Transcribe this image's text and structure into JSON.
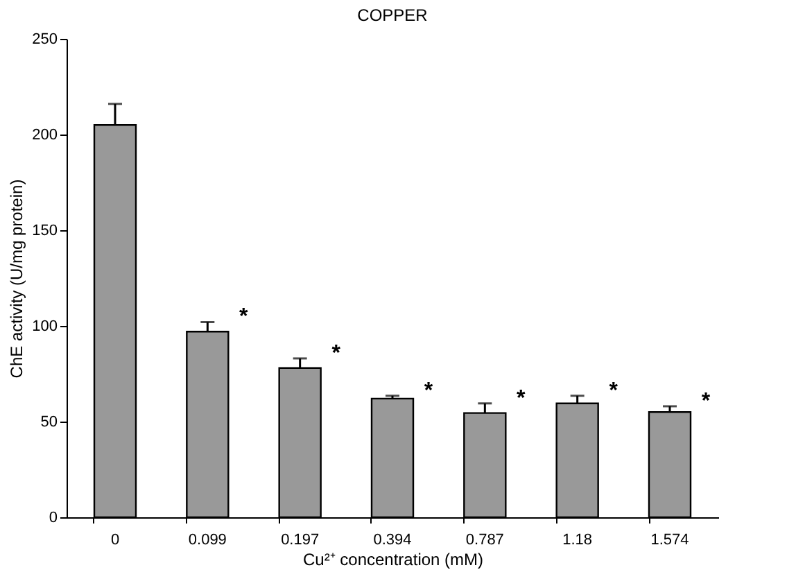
{
  "chart_data": {
    "type": "bar",
    "title": "COPPER",
    "xlabel": "Cu²⁺ concentration (mM)",
    "ylabel": "ChE activity (U/mg protein)",
    "categories": [
      "0",
      "0.099",
      "0.197",
      "0.394",
      "0.787",
      "1.18",
      "1.574"
    ],
    "values": [
      205,
      97,
      78,
      62,
      54.5,
      59.5,
      55
    ],
    "errors": [
      11,
      5,
      5,
      1.5,
      5,
      4,
      3
    ],
    "color": "#999999",
    "ylim": [
      0,
      250
    ],
    "yticks": [
      0,
      50,
      100,
      150,
      200,
      250
    ],
    "grid": false,
    "annotations": [
      {
        "text": "*",
        "x": "0.099",
        "y": 102
      },
      {
        "text": "*",
        "x": "0.197",
        "y": 83
      },
      {
        "text": "*",
        "x": "0.394",
        "y": 63.5
      },
      {
        "text": "*",
        "x": "0.787",
        "y": 59.5
      },
      {
        "text": "*",
        "x": "1.18",
        "y": 63.5
      },
      {
        "text": "*",
        "x": "1.574",
        "y": 58
      }
    ]
  }
}
